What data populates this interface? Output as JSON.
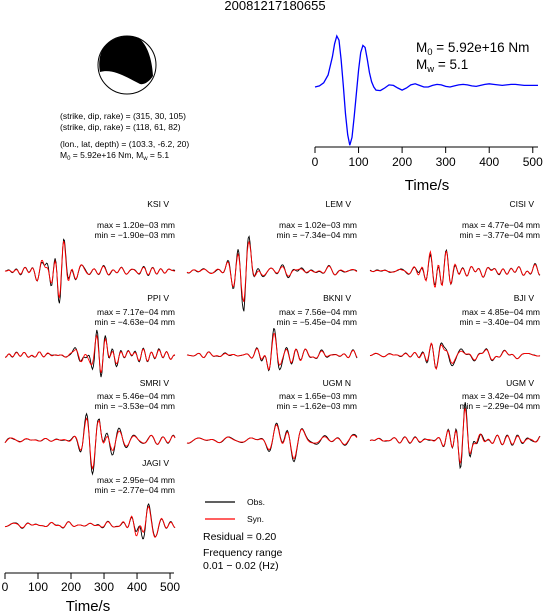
{
  "header": {
    "event_id": "20081217180655"
  },
  "mechanism": {
    "plane1": "(strike, dip, rake) = (315, 30, 105)",
    "plane2": "(strike, dip, rake) = (118, 61, 82)",
    "location": "(lon., lat, depth) = (103.3, -6.2, 20)",
    "moment_prefix": "M",
    "moment_sub": "0",
    "moment_rest": " = 5.92e+16 Nm, M",
    "mw_sub": "w",
    "mw_rest": " = 5.1"
  },
  "stf": {
    "m0_prefix": "M",
    "m0_sub": "0",
    "m0_rest": " = 5.92e+16 Nm",
    "mw_prefix": "M",
    "mw_sub": "w",
    "mw_rest": " = 5.1",
    "xlabel": "Time/s",
    "color": "#0000ff"
  },
  "legend": {
    "obs_label": "Obs.",
    "syn_label": "Syn.",
    "residual": "Residual = 0.20",
    "freq_title": "Frequency range",
    "freq_values": "0.01 − 0.02 (Hz)"
  },
  "colors": {
    "observed": "#000000",
    "synthetic": "#ff0000"
  },
  "stations": [
    {
      "name": "KSI V",
      "max": "max = 1.20e−03 mm",
      "min": "min = −1.90e−03 mm"
    },
    {
      "name": "LEM V",
      "max": "max = 1.02e−03 mm",
      "min": "min = −7.34e−04 mm"
    },
    {
      "name": "CISI V",
      "max": "max = 4.77e−04 mm",
      "min": "min = −3.77e−04 mm"
    },
    {
      "name": "PPI V",
      "max": "max = 7.17e−04 mm",
      "min": "min = −4.63e−04 mm"
    },
    {
      "name": "BKNI V",
      "max": "max = 7.56e−04 mm",
      "min": "min = −5.45e−04 mm"
    },
    {
      "name": "BJI V",
      "max": "max = 4.85e−04 mm",
      "min": "min = −3.40e−04 mm"
    },
    {
      "name": "SMRI V",
      "max": "max = 5.46e−04 mm",
      "min": "min = −3.53e−04 mm"
    },
    {
      "name": "UGM N",
      "max": "max = 1.65e−03 mm",
      "min": "min = −1.62e−03 mm"
    },
    {
      "name": "UGM V",
      "max": "max = 3.42e−04 mm",
      "min": "min = −2.29e−04 mm"
    },
    {
      "name": "JAGI V",
      "max": "max = 2.95e−04 mm",
      "min": "min = −2.77e−04 mm"
    }
  ],
  "waveform_axis": {
    "xlabel": "Time/s"
  },
  "chart_data": [
    {
      "type": "line",
      "title": "",
      "xlabel": "Time/s",
      "ylabel": "",
      "xlim": [
        0,
        512
      ],
      "xticks": [
        0,
        100,
        200,
        300,
        400,
        500
      ],
      "series": [
        {
          "x": [
            0,
            10,
            20,
            30,
            40,
            45,
            50,
            55,
            60,
            65,
            70,
            75,
            80,
            85,
            90,
            95,
            100,
            105,
            110,
            115,
            120,
            125,
            130,
            135,
            140,
            150,
            160,
            170,
            180,
            190,
            200,
            210,
            220,
            230,
            240,
            250,
            260,
            270,
            280,
            290,
            300,
            310,
            320,
            330,
            340,
            350,
            360,
            370,
            380,
            390,
            400,
            410,
            420,
            430,
            440,
            450,
            460,
            470,
            480,
            490,
            500,
            512
          ],
          "y": [
            0.02,
            0.04,
            0.1,
            0.25,
            0.6,
            0.85,
            1.0,
            0.92,
            0.55,
            0.05,
            -0.5,
            -0.9,
            -1.1,
            -0.95,
            -0.55,
            -0.1,
            0.35,
            0.68,
            0.82,
            0.78,
            0.55,
            0.3,
            0.12,
            0.02,
            -0.04,
            -0.05,
            0.0,
            0.06,
            0.05,
            0.0,
            -0.04,
            0.0,
            0.06,
            0.08,
            0.05,
            0.02,
            0.02,
            0.05,
            0.07,
            0.06,
            0.03,
            0.02,
            0.04,
            0.06,
            0.07,
            0.06,
            0.04,
            0.03,
            0.05,
            0.07,
            0.08,
            0.07,
            0.06,
            0.05,
            0.06,
            0.07,
            0.07,
            0.06,
            0.05,
            0.05,
            0.05,
            0.05
          ]
        }
      ]
    }
  ]
}
